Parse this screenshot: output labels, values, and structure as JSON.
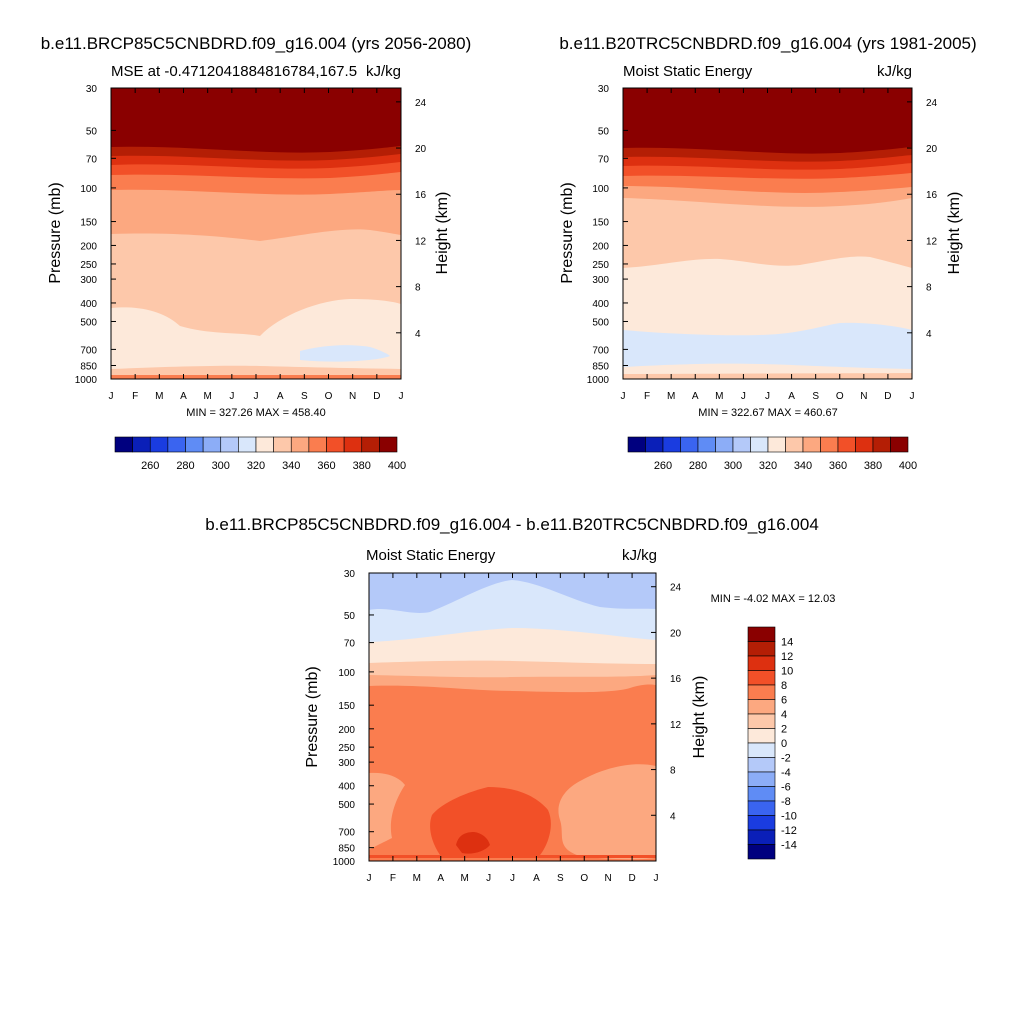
{
  "colors": {
    "palette": [
      "#00007f",
      "#0a1fb8",
      "#1a3ce0",
      "#3a64f0",
      "#5f8cf5",
      "#8cadf7",
      "#b4c9f9",
      "#d9e7fb",
      "#fde9da",
      "#fdc8aa",
      "#fca880",
      "#fa7d4f",
      "#f25028",
      "#dd3010",
      "#b41e05",
      "#8a0000"
    ]
  },
  "panel1": {
    "title": "b.e11.BRCP85C5CNBDRD.f09_g16.004 (yrs 2056-2080)",
    "left_string": "MSE at -0.4712041884816784,167.5",
    "right_string": "kJ/kg",
    "stats": "MIN = 327.26 MAX = 458.40"
  },
  "panel2": {
    "title": "b.e11.B20TRC5CNBDRD.f09_g16.004 (yrs 1981-2005)",
    "left_string": "Moist Static Energy",
    "right_string": "kJ/kg",
    "stats": "MIN = 322.67 MAX = 460.67"
  },
  "panel3": {
    "title": "b.e11.BRCP85C5CNBDRD.f09_g16.004 - b.e11.B20TRC5CNBDRD.f09_g16.004",
    "left_string": "Moist Static Energy",
    "right_string": "kJ/kg",
    "stats": "MIN =  -4.02 MAX =  12.03"
  },
  "axes": {
    "ylabel_left": "Pressure (mb)",
    "ylabel_right": "Height (km)",
    "months": [
      "J",
      "F",
      "M",
      "A",
      "M",
      "J",
      "J",
      "A",
      "S",
      "O",
      "N",
      "D",
      "J"
    ],
    "pressure_ticks": [
      "30",
      "50",
      "70",
      "100",
      "150",
      "200",
      "250",
      "300",
      "400",
      "500",
      "700",
      "850",
      "1000"
    ],
    "height_ticks": [
      "4",
      "8",
      "12",
      "16",
      "20",
      "24"
    ]
  },
  "colorbar_h": {
    "labels": [
      "260",
      "280",
      "300",
      "320",
      "340",
      "360",
      "380",
      "400"
    ]
  },
  "colorbar_v": {
    "labels": [
      "14",
      "12",
      "10",
      "8",
      "6",
      "4",
      "2",
      "0",
      "-2",
      "-4",
      "-6",
      "-8",
      "-10",
      "-12",
      "-14"
    ]
  },
  "chart_data": [
    {
      "type": "heatmap",
      "name": "panel1",
      "title": "b.e11.BRCP85C5CNBDRD.f09_g16.004 (yrs 2056-2080)",
      "xlabel": "",
      "ylabel": "Pressure (mb)",
      "y2label": "Height (km)",
      "x": [
        "J",
        "F",
        "M",
        "A",
        "M",
        "J",
        "J",
        "A",
        "S",
        "O",
        "N",
        "D",
        "J"
      ],
      "ylim": [
        1000,
        30
      ],
      "contour_levels": [
        250,
        260,
        270,
        280,
        290,
        300,
        310,
        320,
        330,
        340,
        350,
        360,
        370,
        380,
        390,
        400
      ],
      "min": 327.26,
      "max": 458.4,
      "value_by_level_mb": {
        "30": 458,
        "50": 405,
        "70": 390,
        "100": 360,
        "150": 352,
        "250": 348,
        "400": 342,
        "700": 333,
        "850": 336,
        "1000": 345
      }
    },
    {
      "type": "heatmap",
      "name": "panel2",
      "title": "b.e11.B20TRC5CNBDRD.f09_g16.004 (yrs 1981-2005)",
      "xlabel": "",
      "ylabel": "Pressure (mb)",
      "y2label": "Height (km)",
      "x": [
        "J",
        "F",
        "M",
        "A",
        "M",
        "J",
        "J",
        "A",
        "S",
        "O",
        "N",
        "D",
        "J"
      ],
      "ylim": [
        1000,
        30
      ],
      "contour_levels": [
        250,
        260,
        270,
        280,
        290,
        300,
        310,
        320,
        330,
        340,
        350,
        360,
        370,
        380,
        390,
        400
      ],
      "min": 322.67,
      "max": 460.67,
      "value_by_level_mb": {
        "30": 460,
        "50": 405,
        "70": 385,
        "100": 355,
        "150": 345,
        "250": 338,
        "400": 333,
        "700": 325,
        "850": 333,
        "1000": 340
      }
    },
    {
      "type": "heatmap",
      "name": "panel3",
      "title": "b.e11.BRCP85C5CNBDRD.f09_g16.004 - b.e11.B20TRC5CNBDRD.f09_g16.004",
      "xlabel": "",
      "ylabel": "Pressure (mb)",
      "y2label": "Height (km)",
      "x": [
        "J",
        "F",
        "M",
        "A",
        "M",
        "J",
        "J",
        "A",
        "S",
        "O",
        "N",
        "D",
        "J"
      ],
      "ylim": [
        1000,
        30
      ],
      "contour_levels": [
        -14,
        -12,
        -10,
        -8,
        -6,
        -4,
        -2,
        0,
        2,
        4,
        6,
        8,
        10,
        12,
        14
      ],
      "min": -4.02,
      "max": 12.03,
      "value_by_level_mb": {
        "30": -1.5,
        "50": 0.5,
        "70": 2.5,
        "100": 7,
        "200": 7,
        "400": 7,
        "500": 8.5,
        "700": 9,
        "850": 10.5,
        "1000": 8
      }
    }
  ]
}
